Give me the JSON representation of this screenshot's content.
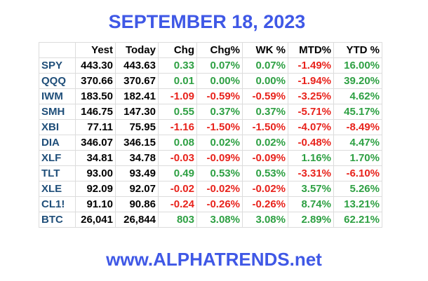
{
  "header": {
    "title": "SEPTEMBER 18, 2023"
  },
  "table": {
    "columns": [
      "",
      "Yest",
      "Today",
      "Chg",
      "Chg%",
      "WK %",
      "MTD%",
      "YTD %"
    ],
    "rows": [
      [
        "SPY",
        "443.30",
        "443.63",
        "0.33",
        "0.07%",
        "0.07%",
        "-1.49%",
        "16.00%"
      ],
      [
        "QQQ",
        "370.66",
        "370.67",
        "0.01",
        "0.00%",
        "0.00%",
        "-1.94%",
        "39.20%"
      ],
      [
        "IWM",
        "183.50",
        "182.41",
        "-1.09",
        "-0.59%",
        "-0.59%",
        "-3.25%",
        "4.62%"
      ],
      [
        "SMH",
        "146.75",
        "147.30",
        "0.55",
        "0.37%",
        "0.37%",
        "-5.71%",
        "45.17%"
      ],
      [
        "XBI",
        "77.11",
        "75.95",
        "-1.16",
        "-1.50%",
        "-1.50%",
        "-4.07%",
        "-8.49%"
      ],
      [
        "DIA",
        "346.07",
        "346.15",
        "0.08",
        "0.02%",
        "0.02%",
        "-0.48%",
        "4.47%"
      ],
      [
        "XLF",
        "34.81",
        "34.78",
        "-0.03",
        "-0.09%",
        "-0.09%",
        "1.16%",
        "1.70%"
      ],
      [
        "TLT",
        "93.00",
        "93.49",
        "0.49",
        "0.53%",
        "0.53%",
        "-3.31%",
        "-6.10%"
      ],
      [
        "XLE",
        "92.09",
        "92.07",
        "-0.02",
        "-0.02%",
        "-0.02%",
        "3.57%",
        "5.26%"
      ],
      [
        "CL1!",
        "91.10",
        "90.86",
        "-0.24",
        "-0.26%",
        "-0.26%",
        "8.74%",
        "13.21%"
      ],
      [
        "BTC",
        "26,041",
        "26,844",
        "803",
        "3.08%",
        "3.08%",
        "2.89%",
        "62.21%"
      ]
    ]
  },
  "footer": {
    "text": "www.ALPHATRENDS.net"
  }
}
